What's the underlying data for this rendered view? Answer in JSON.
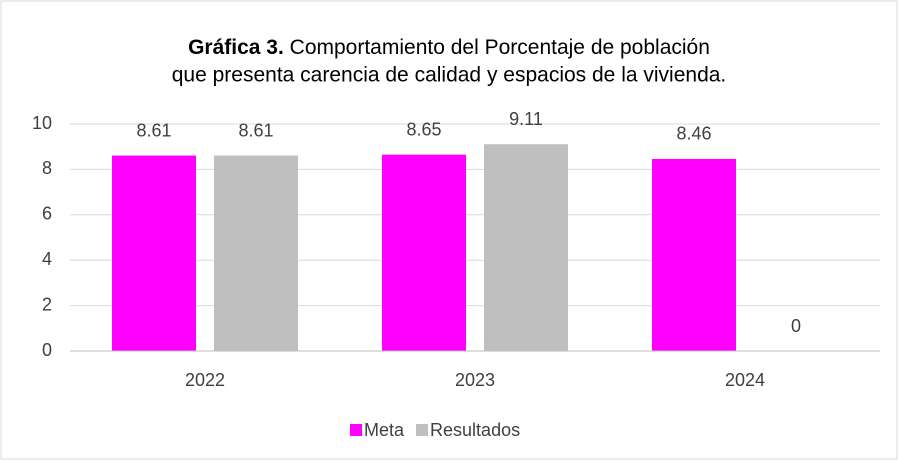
{
  "chart_data": {
    "type": "bar",
    "title_prefix": "Gráfica 3.",
    "title_lines": [
      "Comportamiento del Porcentaje de población",
      "que presenta carencia de calidad y espacios de la vivienda."
    ],
    "categories": [
      "2022",
      "2023",
      "2024"
    ],
    "series": [
      {
        "name": "Meta",
        "color": "#ff00ff",
        "values": [
          8.61,
          8.65,
          8.46
        ]
      },
      {
        "name": "Resultados",
        "color": "#bfbfbf",
        "values": [
          8.61,
          9.11,
          0
        ]
      }
    ],
    "ylim": [
      0,
      10
    ],
    "yticks": [
      0,
      2,
      4,
      6,
      8,
      10
    ],
    "grid": true,
    "legend": "bottom"
  }
}
